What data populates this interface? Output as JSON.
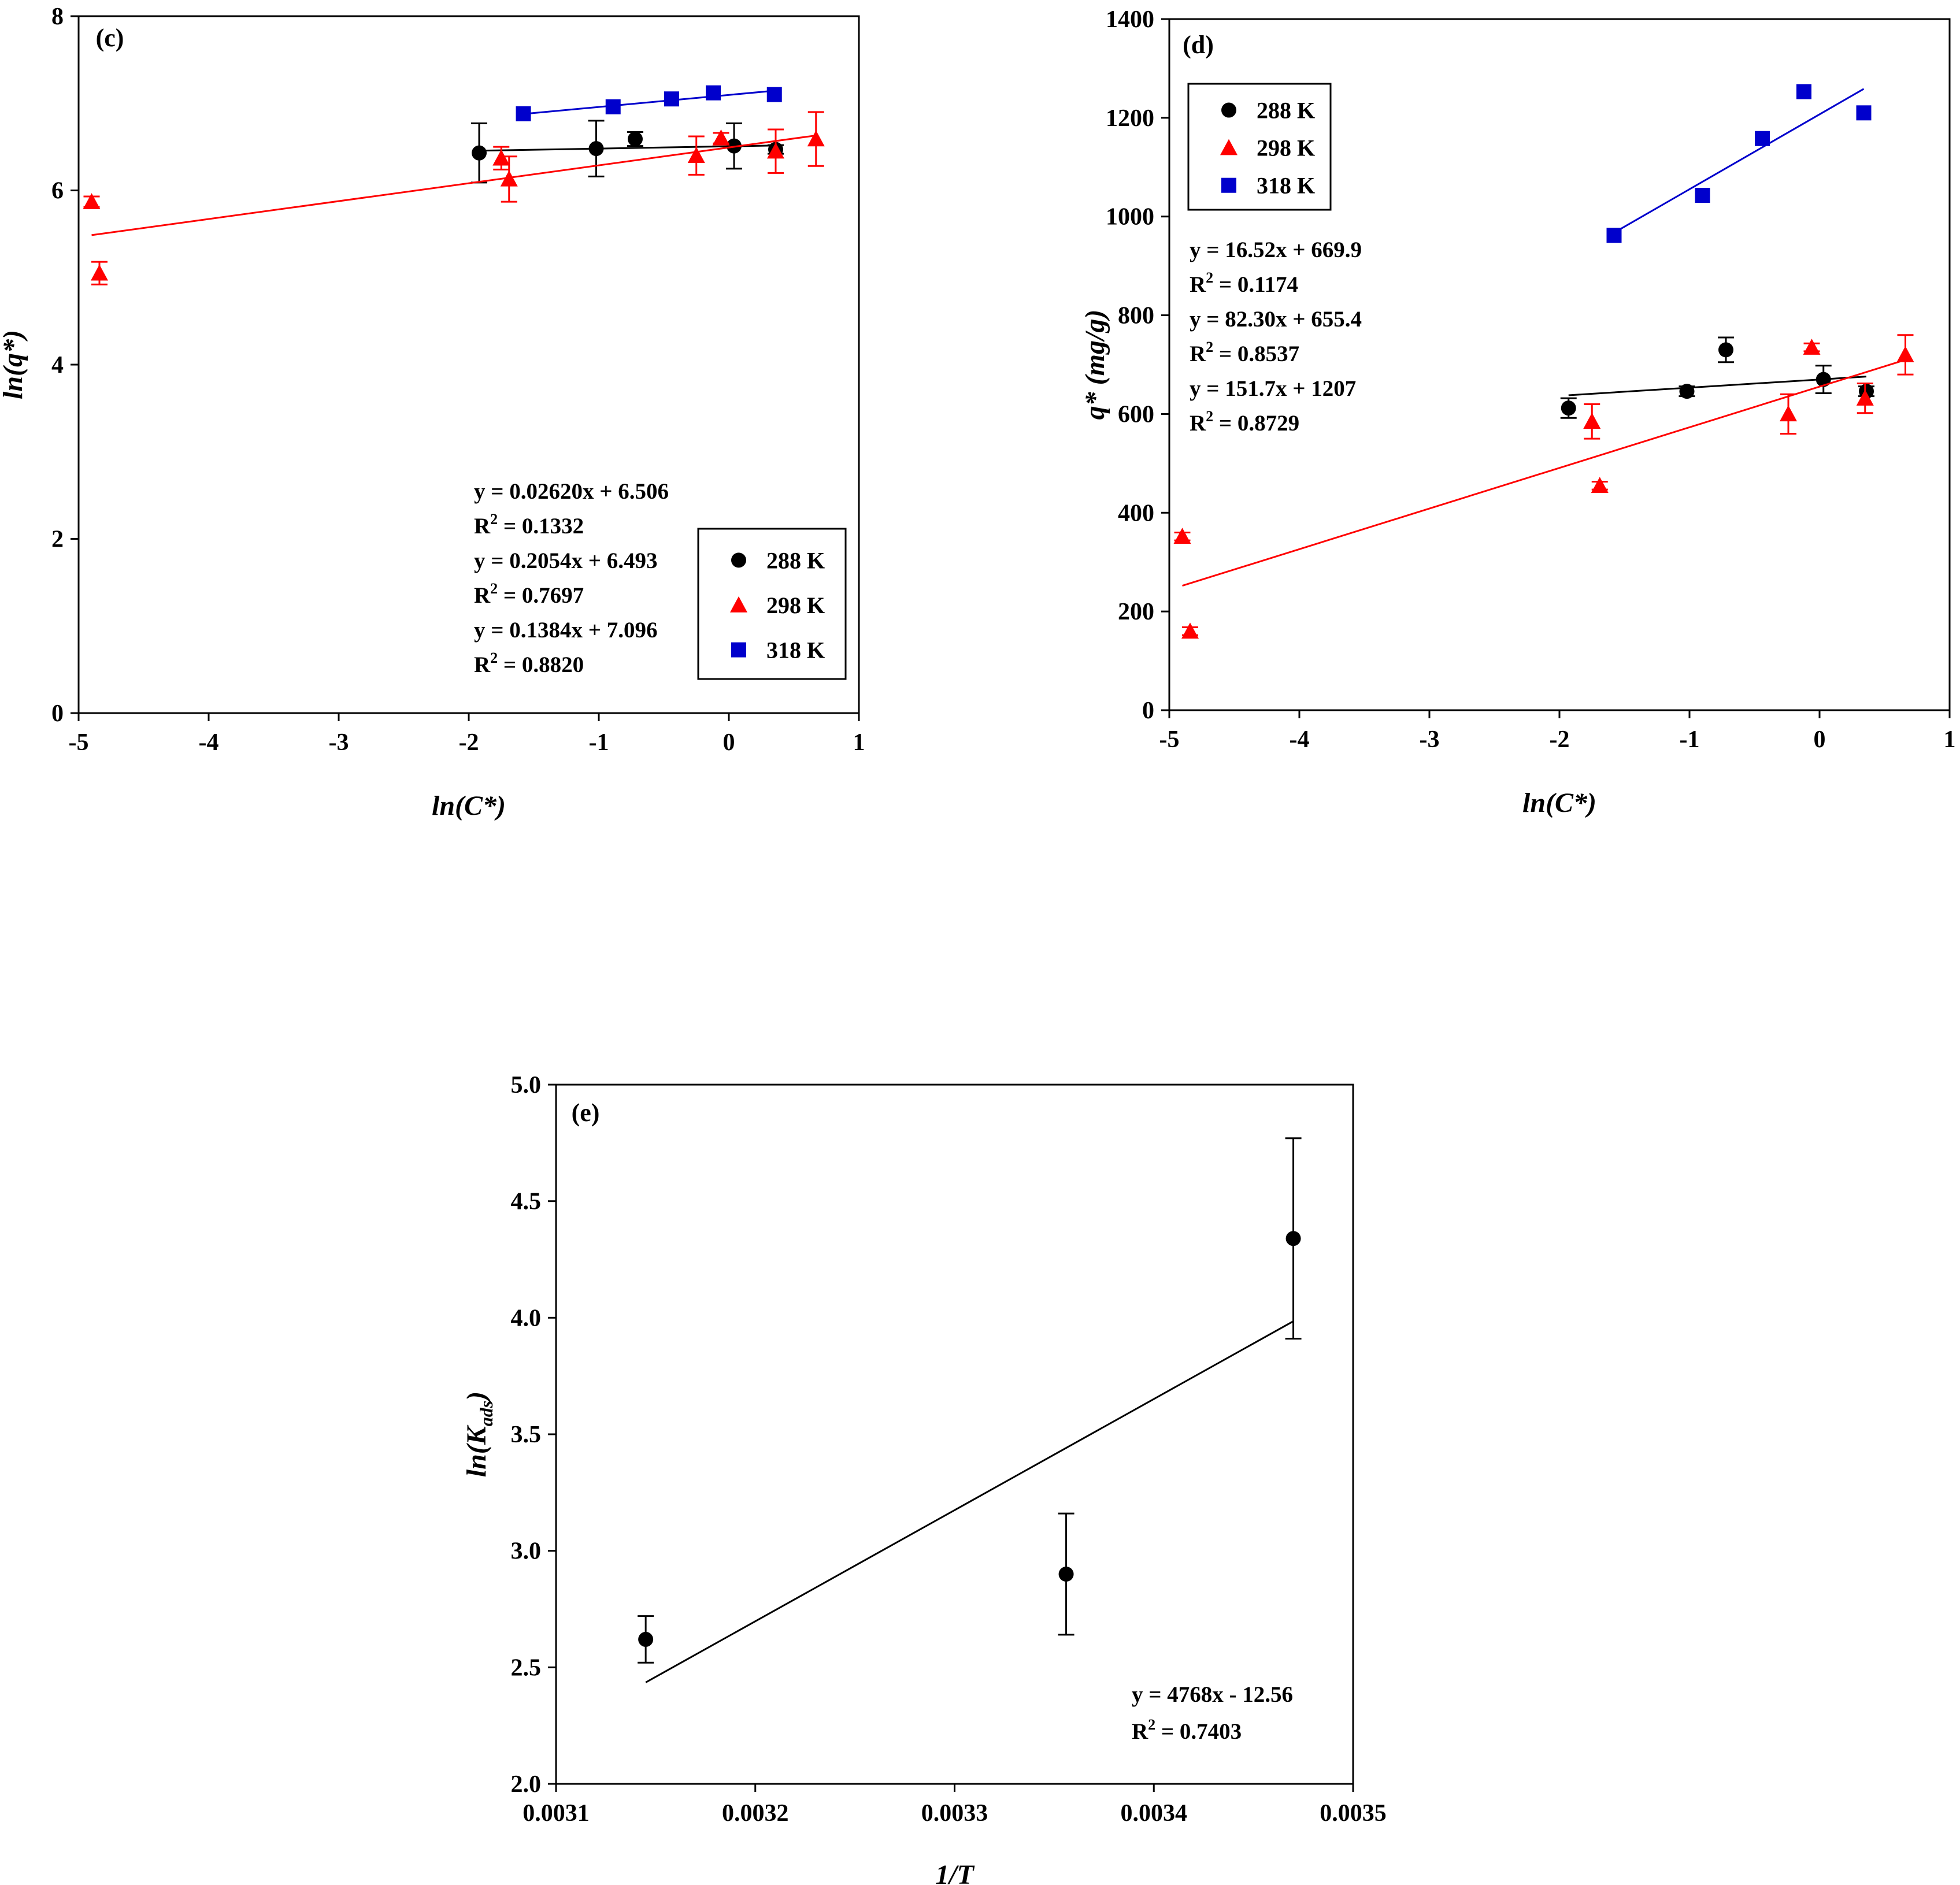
{
  "chart_data": [
    {
      "id": "c",
      "type": "scatter",
      "panel_label": "(c)",
      "xlabel": "ln(C*)",
      "ylabel": "ln(q*)",
      "xlim": [
        -5,
        1
      ],
      "ylim": [
        0,
        8
      ],
      "xticks": [
        -5,
        -4,
        -3,
        -2,
        -1,
        0,
        1
      ],
      "yticks": [
        0,
        2,
        4,
        6,
        8
      ],
      "legend": {
        "position": "bottom-right",
        "entries": [
          "288 K",
          "298 K",
          "318 K"
        ]
      },
      "equations": [
        {
          "eq": "y = 0.02620x + 6.506",
          "r2_prefix": "R",
          "r2_exp": "2",
          "r2_val": " = 0.1332"
        },
        {
          "eq": "y = 0.2054x + 6.493",
          "r2_prefix": "R",
          "r2_exp": "2",
          "r2_val": " = 0.7697"
        },
        {
          "eq": "y = 0.1384x + 7.096",
          "r2_prefix": "R",
          "r2_exp": "2",
          "r2_val": " = 0.8820"
        }
      ],
      "series": [
        {
          "name": "288 K",
          "color": "#000000",
          "marker": "circle",
          "points": [
            {
              "x": -1.92,
              "y": 6.43,
              "err": 0.34
            },
            {
              "x": -1.02,
              "y": 6.48,
              "err": 0.32
            },
            {
              "x": -0.72,
              "y": 6.59,
              "err": 0.08
            },
            {
              "x": 0.04,
              "y": 6.51,
              "err": 0.26
            },
            {
              "x": 0.36,
              "y": 6.47,
              "err": 0.05
            }
          ],
          "fit": {
            "slope": 0.0262,
            "intercept": 6.506,
            "xrange": [
              -1.92,
              0.36
            ]
          }
        },
        {
          "name": "298 K",
          "color": "#ff0000",
          "marker": "triangle",
          "points": [
            {
              "x": -4.9,
              "y": 5.87,
              "err": 0.06
            },
            {
              "x": -4.84,
              "y": 5.05,
              "err": 0.13
            },
            {
              "x": -1.75,
              "y": 6.37,
              "err": 0.13
            },
            {
              "x": -1.69,
              "y": 6.13,
              "err": 0.26
            },
            {
              "x": -0.25,
              "y": 6.4,
              "err": 0.22
            },
            {
              "x": -0.06,
              "y": 6.6,
              "err": 0.06
            },
            {
              "x": 0.36,
              "y": 6.45,
              "err": 0.25
            },
            {
              "x": 0.67,
              "y": 6.59,
              "err": 0.31
            }
          ],
          "fit": {
            "slope": 0.2054,
            "intercept": 6.493,
            "xrange": [
              -4.9,
              0.67
            ]
          }
        },
        {
          "name": "318 K",
          "color": "#0000cc",
          "marker": "square",
          "points": [
            {
              "x": -1.58,
              "y": 6.88
            },
            {
              "x": -0.89,
              "y": 6.96
            },
            {
              "x": -0.44,
              "y": 7.05
            },
            {
              "x": -0.12,
              "y": 7.12
            },
            {
              "x": 0.35,
              "y": 7.1
            }
          ],
          "fit": {
            "slope": 0.1384,
            "intercept": 7.096,
            "xrange": [
              -1.58,
              0.35
            ]
          }
        }
      ]
    },
    {
      "id": "d",
      "type": "scatter",
      "panel_label": "(d)",
      "xlabel": "ln(C*)",
      "ylabel": "q* (mg/g)",
      "xlim": [
        -5,
        1
      ],
      "ylim": [
        0,
        1400
      ],
      "xticks": [
        -5,
        -4,
        -3,
        -2,
        -1,
        0,
        1
      ],
      "yticks": [
        0,
        200,
        400,
        600,
        800,
        1000,
        1200,
        1400
      ],
      "legend": {
        "position": "top-left",
        "entries": [
          "288 K",
          "298 K",
          "318 K"
        ]
      },
      "equations": [
        {
          "eq": "y = 16.52x + 669.9",
          "r2_prefix": "R",
          "r2_exp": "2",
          "r2_val": " = 0.1174"
        },
        {
          "eq": "y = 82.30x + 655.4",
          "r2_prefix": "R",
          "r2_exp": "2",
          "r2_val": " = 0.8537"
        },
        {
          "eq": "y = 151.7x + 1207",
          "r2_prefix": "R",
          "r2_exp": "2",
          "r2_val": " = 0.8729"
        }
      ],
      "series": [
        {
          "name": "288 K",
          "color": "#000000",
          "marker": "circle",
          "points": [
            {
              "x": -1.93,
              "y": 612,
              "err": 20
            },
            {
              "x": -1.02,
              "y": 646,
              "err": 10
            },
            {
              "x": -0.72,
              "y": 730,
              "err": 25
            },
            {
              "x": 0.03,
              "y": 670,
              "err": 28
            },
            {
              "x": 0.36,
              "y": 646,
              "err": 10
            }
          ],
          "fit": {
            "slope": 16.52,
            "intercept": 669.9,
            "xrange": [
              -1.93,
              0.36
            ]
          }
        },
        {
          "name": "298 K",
          "color": "#ff0000",
          "marker": "triangle",
          "points": [
            {
              "x": -4.9,
              "y": 352,
              "err": 8
            },
            {
              "x": -4.84,
              "y": 160,
              "err": 8
            },
            {
              "x": -1.75,
              "y": 585,
              "err": 35
            },
            {
              "x": -1.69,
              "y": 455,
              "err": 8
            },
            {
              "x": -0.24,
              "y": 600,
              "err": 40
            },
            {
              "x": -0.06,
              "y": 735,
              "err": 8
            },
            {
              "x": 0.35,
              "y": 632,
              "err": 30
            },
            {
              "x": 0.66,
              "y": 720,
              "err": 40
            }
          ],
          "fit": {
            "slope": 82.3,
            "intercept": 655.4,
            "xrange": [
              -4.9,
              0.66
            ]
          }
        },
        {
          "name": "318 K",
          "color": "#0000cc",
          "marker": "square",
          "points": [
            {
              "x": -1.58,
              "y": 962
            },
            {
              "x": -0.9,
              "y": 1043
            },
            {
              "x": -0.44,
              "y": 1158
            },
            {
              "x": -0.12,
              "y": 1253
            },
            {
              "x": 0.34,
              "y": 1210
            }
          ],
          "fit": {
            "slope": 151.7,
            "intercept": 1207,
            "xrange": [
              -1.58,
              0.34
            ]
          }
        }
      ]
    },
    {
      "id": "e",
      "type": "scatter",
      "panel_label": "(e)",
      "xlabel": "1/T",
      "ylabel": "ln(Kads)",
      "ylabel_main": "ln(K",
      "ylabel_sub": "ads",
      "ylabel_close": ")",
      "xlim": [
        0.0031,
        0.0035
      ],
      "ylim": [
        2.0,
        5.0
      ],
      "xticks": [
        "0.0031",
        "0.0032",
        "0.0033",
        "0.0034",
        "0.0035"
      ],
      "yticks": [
        "2.0",
        "2.5",
        "3.0",
        "3.5",
        "4.0",
        "4.5",
        "5.0"
      ],
      "equations": [
        {
          "eq": "y = 4768x - 12.56",
          "r2_prefix": "R",
          "r2_exp": "2",
          "r2_val": " = 0.7403"
        }
      ],
      "series": [
        {
          "name": "",
          "color": "#000000",
          "marker": "circle",
          "points": [
            {
              "x": 0.003145,
              "y": 2.62,
              "err": 0.1
            },
            {
              "x": 0.003356,
              "y": 2.9,
              "err": 0.26
            },
            {
              "x": 0.00347,
              "y": 4.34,
              "err": 0.43
            }
          ],
          "fit": {
            "slope": 4768,
            "intercept": -12.56,
            "xrange": [
              0.003145,
              0.00347
            ]
          }
        }
      ]
    }
  ]
}
